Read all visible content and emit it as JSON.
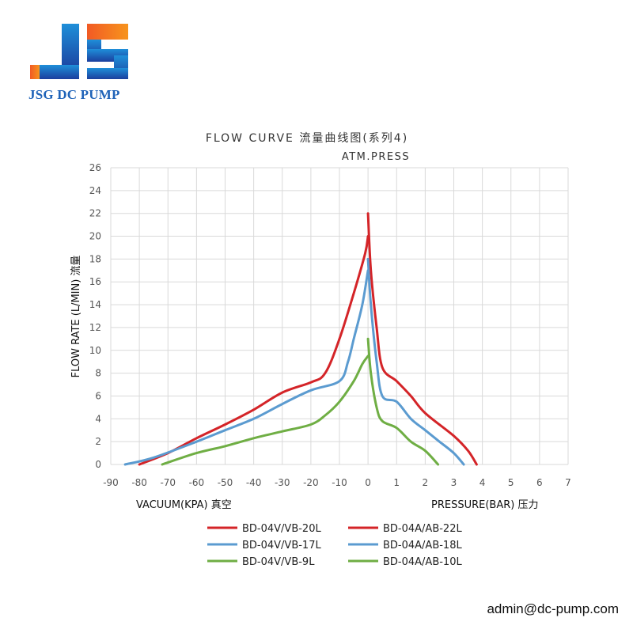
{
  "brand": {
    "logo_name": "JSG DC PUMP",
    "colors": {
      "blue": "#1f63b8",
      "orange": "#f47a20"
    }
  },
  "contact": {
    "email": "admin@dc-pump.com"
  },
  "chart_data": {
    "type": "line",
    "title": "FLOW CURVE 流量曲线图(系列4)",
    "subtitle": "ATM.PRESS",
    "ylabel": "FLOW RATE (L/MIN) 流量",
    "xlabel_left": "VACUUM(KPA) 真空",
    "xlabel_right": "PRESSURE(BAR) 压力",
    "grid": true,
    "legend_position": "bottom",
    "ylim": [
      0,
      26
    ],
    "yticks": [
      "0",
      "2",
      "4",
      "6",
      "8",
      "10",
      "12",
      "14",
      "16",
      "18",
      "20",
      "22",
      "24",
      "26"
    ],
    "xticks_vacuum": [
      "-90",
      "-80",
      "-70",
      "-60",
      "-50",
      "-40",
      "-30",
      "-20",
      "-10",
      "0"
    ],
    "xticks_pressure": [
      "0",
      "1",
      "2",
      "3",
      "4",
      "5",
      "6",
      "7"
    ],
    "vacuum_series": [
      {
        "name": "BD-04V/VB-20L",
        "color": "#d42428",
        "x": [
          -80,
          -70,
          -60,
          -50,
          -40,
          -30,
          -20,
          -15,
          -10,
          -5,
          -1,
          0
        ],
        "y": [
          0,
          1,
          2.3,
          3.5,
          4.8,
          6.3,
          7.2,
          8,
          11,
          15,
          18.5,
          20
        ]
      },
      {
        "name": "BD-04V/VB-17L",
        "color": "#5b9bd0",
        "x": [
          -85,
          -75,
          -60,
          -50,
          -40,
          -30,
          -20,
          -10,
          -7,
          -5,
          -2,
          0
        ],
        "y": [
          0,
          0.6,
          2,
          3,
          4,
          5.3,
          6.5,
          7.3,
          9,
          11,
          14,
          17
        ]
      },
      {
        "name": "BD-04V/VB-9L",
        "color": "#6fae44",
        "x": [
          -72,
          -60,
          -50,
          -40,
          -30,
          -20,
          -15,
          -10,
          -5,
          -2,
          0
        ],
        "y": [
          0,
          1,
          1.6,
          2.3,
          2.9,
          3.5,
          4.3,
          5.5,
          7.3,
          8.8,
          9.5
        ]
      }
    ],
    "pressure_series": [
      {
        "name": "BD-04A/AB-22L",
        "color": "#d42428",
        "x": [
          0,
          0.1,
          0.3,
          0.5,
          1,
          1.5,
          2,
          3,
          3.5,
          3.8
        ],
        "y": [
          22,
          17,
          12,
          8.5,
          7.3,
          6,
          4.5,
          2.5,
          1.2,
          0
        ]
      },
      {
        "name": "BD-04A/AB-18L",
        "color": "#5b9bd0",
        "x": [
          0,
          0.1,
          0.3,
          0.5,
          1,
          1.5,
          2,
          2.5,
          3,
          3.35
        ],
        "y": [
          18,
          14,
          9,
          6,
          5.5,
          4,
          3,
          2,
          1,
          0
        ]
      },
      {
        "name": "BD-04A/AB-10L",
        "color": "#6fae44",
        "x": [
          0,
          0.1,
          0.3,
          0.5,
          1,
          1.5,
          2,
          2.45
        ],
        "y": [
          11,
          8,
          5,
          3.8,
          3.2,
          2,
          1.2,
          0
        ]
      }
    ]
  }
}
